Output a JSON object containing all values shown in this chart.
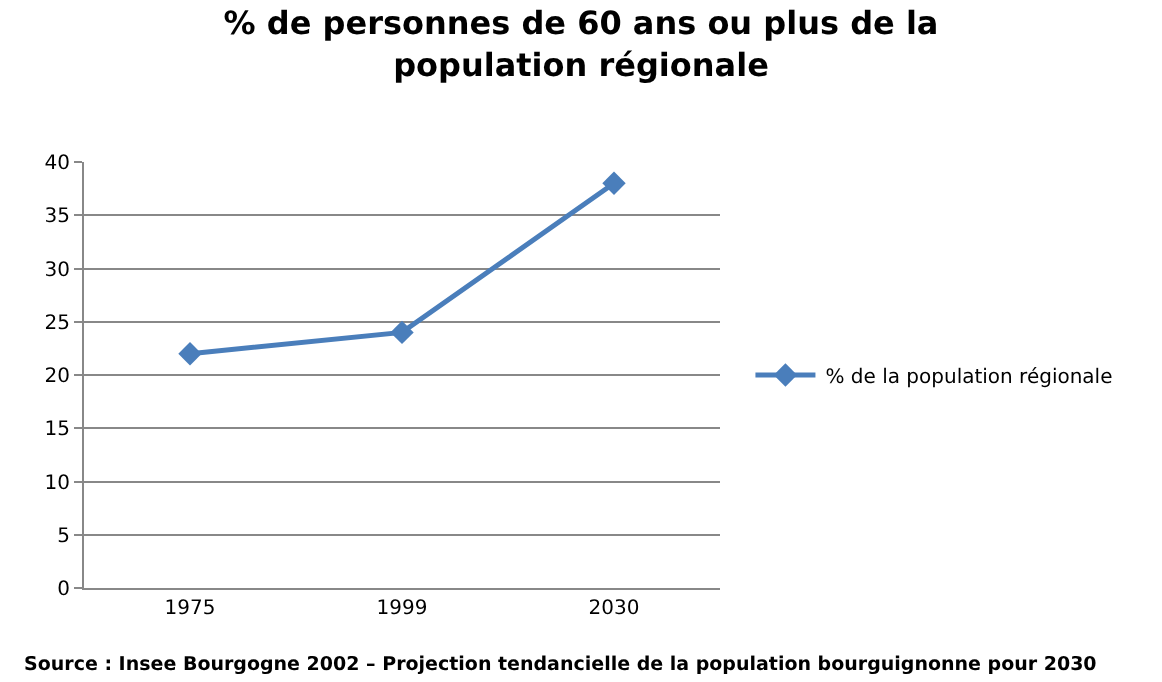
{
  "chart_data": {
    "type": "line",
    "title": "% de personnes de 60 ans ou plus de la population régionale",
    "categories": [
      "1975",
      "1999",
      "2030"
    ],
    "series": [
      {
        "name": "% de la population régionale",
        "color": "#4a7ebb",
        "values": [
          22,
          24,
          38
        ]
      }
    ],
    "ylim": [
      0,
      40
    ],
    "yticks": [
      0,
      5,
      10,
      15,
      20,
      25,
      30,
      35,
      40
    ],
    "grid": "y",
    "legend": "right",
    "marker": "diamond",
    "line_style": "solid",
    "annotations": [
      "Source : Insee Bourgogne 2002 – Projection tendancielle de la population bourguignonne pour 2030"
    ]
  }
}
